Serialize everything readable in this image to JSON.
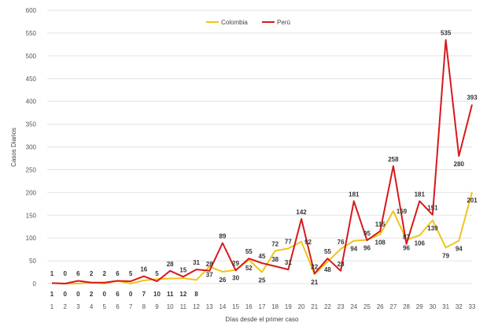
{
  "chart_data": {
    "type": "line",
    "title": "",
    "xlabel": "Días desde el primer caso",
    "ylabel": "Casos Diarios",
    "ylim": [
      0,
      600
    ],
    "yticks": [
      0,
      50,
      100,
      150,
      200,
      250,
      300,
      350,
      400,
      450,
      500,
      550,
      600
    ],
    "grid": true,
    "legend_position": "top-center",
    "x": [
      1,
      2,
      3,
      4,
      5,
      6,
      7,
      8,
      9,
      10,
      11,
      12,
      13,
      14,
      15,
      16,
      17,
      18,
      19,
      20,
      21,
      22,
      23,
      24,
      25,
      26,
      27,
      28,
      29,
      30,
      31,
      32,
      33
    ],
    "series": [
      {
        "name": "Colombia",
        "color": "#f0c419",
        "values": [
          1,
          0,
          0,
          2,
          0,
          6,
          0,
          7,
          10,
          11,
          12,
          8,
          37,
          26,
          30,
          52,
          25,
          72,
          77,
          92,
          21,
          48,
          76,
          94,
          96,
          108,
          159,
          96,
          106,
          139,
          79,
          94,
          201
        ],
        "label_show": [
          1,
          0,
          0,
          2,
          0,
          6,
          0,
          7,
          10,
          11,
          12,
          8,
          37,
          26,
          30,
          52,
          25,
          72,
          77,
          92,
          21,
          48,
          76,
          94,
          96,
          108,
          159,
          96,
          106,
          139,
          79,
          94,
          201
        ],
        "label_pos": [
          "below",
          "below",
          "below",
          "below",
          "below",
          "below",
          "below",
          "below",
          "below",
          "below",
          "below",
          "below",
          "below",
          "below",
          "below",
          "below",
          "below",
          "above",
          "above",
          "right",
          "below",
          "below",
          "above",
          "below",
          "below",
          "below",
          "right",
          "below",
          "below",
          "below",
          "below",
          "below",
          "below"
        ]
      },
      {
        "name": "Perú",
        "color": "#d7191c",
        "values": [
          1,
          0,
          6,
          2,
          2,
          6,
          5,
          16,
          5,
          28,
          15,
          31,
          28,
          89,
          29,
          55,
          45,
          38,
          31,
          142,
          22,
          55,
          28,
          181,
          95,
          115,
          258,
          87,
          181,
          151,
          535,
          280,
          393
        ],
        "label_show": [
          1,
          0,
          6,
          2,
          2,
          6,
          5,
          16,
          5,
          28,
          15,
          31,
          28,
          89,
          29,
          55,
          45,
          38,
          31,
          142,
          22,
          55,
          28,
          181,
          95,
          115,
          258,
          87,
          181,
          151,
          535,
          280,
          393
        ],
        "label_pos": [
          "above",
          "above",
          "above",
          "above",
          "above",
          "above",
          "above",
          "above",
          "above",
          "above",
          "above",
          "above",
          "above",
          "above",
          "above",
          "above",
          "above",
          "above",
          "above",
          "above",
          "above",
          "above",
          "above",
          "above",
          "above",
          "above",
          "above",
          "above",
          "above",
          "above",
          "above",
          "below",
          "above"
        ]
      }
    ]
  }
}
